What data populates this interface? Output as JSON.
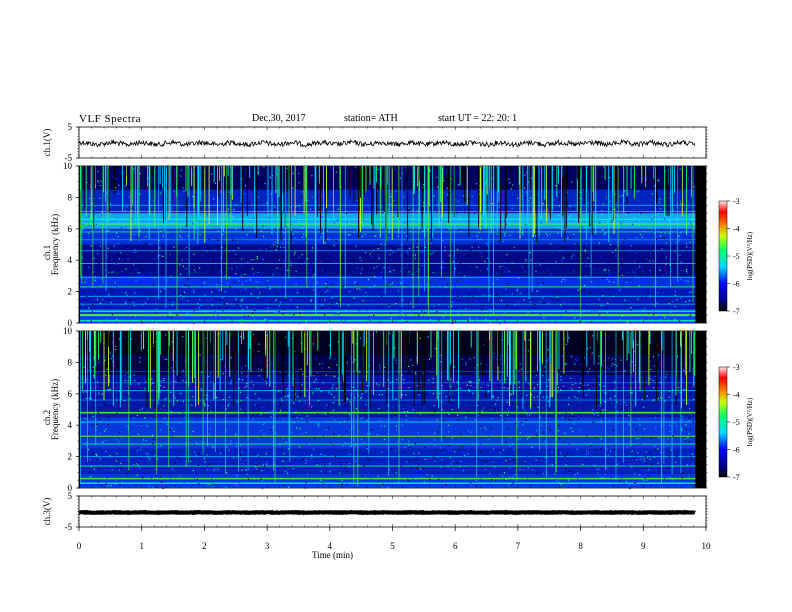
{
  "header": {
    "title": "VLF  Spectra",
    "date": "Dec.30, 2017",
    "station": "station= ATH",
    "start_ut": "start  UT  =    22: 20: 1"
  },
  "chart_data": [
    {
      "type": "line",
      "panel": "ch1-waveform",
      "ylabel": "ch.1(V)",
      "ylim": [
        -5,
        5
      ],
      "yticks": [
        "5",
        "-5"
      ],
      "xlim": [
        0,
        10
      ],
      "color": "#000000"
    },
    {
      "type": "heatmap",
      "panel": "ch1-spectrogram",
      "ylabel": "ch.1",
      "ylabel2": "Frequency  (kHz)",
      "ylim": [
        0,
        10
      ],
      "yticks": [
        "0",
        "2",
        "4",
        "6",
        "8",
        "10"
      ],
      "xlim": [
        0,
        10
      ],
      "colorbar": {
        "label": "log(PSD)(V²/Hz)",
        "range": [
          -7,
          -3
        ],
        "ticks": [
          "-3",
          "-4",
          "-5",
          "-6",
          "-7"
        ]
      }
    },
    {
      "type": "heatmap",
      "panel": "ch2-spectrogram",
      "ylabel": "ch.2",
      "ylabel2": "Frequency  (kHz)",
      "ylim": [
        0,
        10
      ],
      "yticks": [
        "0",
        "2",
        "4",
        "6",
        "8",
        "10"
      ],
      "xlim": [
        0,
        10
      ],
      "colorbar": {
        "label": "log(PSD)(V²/Hz)",
        "range": [
          -7,
          -3
        ],
        "ticks": [
          "-3",
          "-4",
          "-5",
          "-6",
          "-7"
        ]
      }
    },
    {
      "type": "line",
      "panel": "ch3-waveform",
      "ylabel": "ch.3(V)",
      "ylim": [
        -5,
        5
      ],
      "yticks": [
        "5",
        "-5"
      ],
      "xlim": [
        0,
        10
      ],
      "xticks": [
        "0",
        "1",
        "2",
        "3",
        "4",
        "5",
        "6",
        "7",
        "8",
        "9",
        "10"
      ],
      "xlabel": "Time  (min)",
      "color": "#000000"
    }
  ]
}
